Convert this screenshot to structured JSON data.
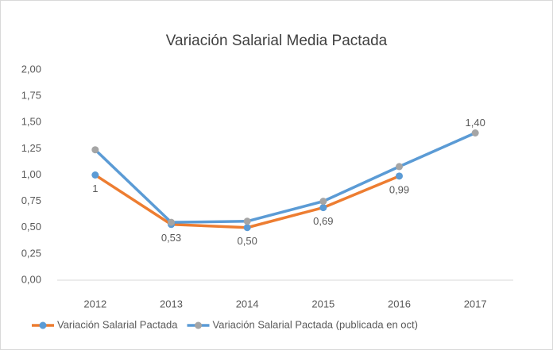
{
  "chart_data": {
    "type": "line",
    "title": "Variación Salarial Media Pactada",
    "categories": [
      "2012",
      "2013",
      "2014",
      "2015",
      "2016",
      "2017"
    ],
    "series": [
      {
        "name": "Variación Salarial Pactada",
        "color": "#ed7d31",
        "marker_color": "#5b9bd5",
        "values": [
          1,
          0.53,
          0.5,
          0.69,
          0.99,
          null
        ],
        "value_labels": [
          "1",
          "0,53",
          "0,50",
          "0,69",
          "0,99",
          null
        ]
      },
      {
        "name": "Variación Salarial Pactada (publicada en oct)",
        "color": "#5b9bd5",
        "marker_color": "#a5a5a5",
        "values": [
          1.24,
          0.55,
          0.56,
          0.75,
          1.08,
          1.4
        ],
        "value_labels": [
          null,
          null,
          null,
          null,
          null,
          "1,40"
        ]
      }
    ],
    "ylim": [
      0,
      2
    ],
    "yticks": [
      {
        "value": 0,
        "label": "0,00"
      },
      {
        "value": 0.25,
        "label": "0,25"
      },
      {
        "value": 0.5,
        "label": "0,50"
      },
      {
        "value": 0.75,
        "label": "0,75"
      },
      {
        "value": 1,
        "label": "1,00"
      },
      {
        "value": 1.25,
        "label": "1,25"
      },
      {
        "value": 1.5,
        "label": "1,50"
      },
      {
        "value": 1.75,
        "label": "1,75"
      },
      {
        "value": 2,
        "label": "2,00"
      }
    ],
    "grid": false,
    "legend": "bottom"
  }
}
